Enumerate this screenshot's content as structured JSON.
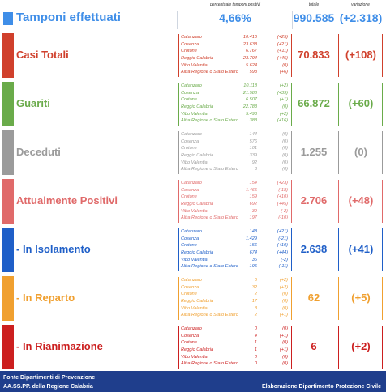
{
  "header": {
    "title": "Tamponi effettuati",
    "pct_label": "percentuale tamponi positivi",
    "pct_value": "4,66%",
    "totale_label": "totale",
    "totale_value": "990.585",
    "variazione_label": "variazione",
    "variazione_value": "(+2.318)",
    "color": "#3f8ee8"
  },
  "sections": [
    {
      "title": "Casi Totali",
      "color": "#d0402c",
      "totale": "70.833",
      "variazione": "(+108)",
      "rows": [
        {
          "name": "Catanzaro",
          "value": "10.416",
          "var": "(+25)"
        },
        {
          "name": "Cosenza",
          "value": "23.638",
          "var": "(+21)"
        },
        {
          "name": "Crotone",
          "value": "6.767",
          "var": "(+11)"
        },
        {
          "name": "Reggio Calabria",
          "value": "23.794",
          "var": "(+45)"
        },
        {
          "name": "Vibo Valentia",
          "value": "5.624",
          "var": "(0)"
        },
        {
          "name": "Altra Regione o Stato Estero",
          "value": "593",
          "var": "(+6)"
        }
      ]
    },
    {
      "title": "Guariti",
      "color": "#6aab4a",
      "totale": "66.872",
      "variazione": "(+60)",
      "rows": [
        {
          "name": "Catanzaro",
          "value": "10.118",
          "var": "(+2)"
        },
        {
          "name": "Cosenza",
          "value": "21.588",
          "var": "(+39)"
        },
        {
          "name": "Crotone",
          "value": "6.507",
          "var": "(+1)"
        },
        {
          "name": "Reggio Calabria",
          "value": "22.783",
          "var": "(0)"
        },
        {
          "name": "Vibo Valentia",
          "value": "5.493",
          "var": "(+2)"
        },
        {
          "name": "Altra Regione o Stato Estero",
          "value": "383",
          "var": "(+16)"
        }
      ]
    },
    {
      "title": "Deceduti",
      "color": "#9b9b9b",
      "totale": "1.255",
      "variazione": "(0)",
      "rows": [
        {
          "name": "Catanzaro",
          "value": "144",
          "var": "(0)"
        },
        {
          "name": "Cosenza",
          "value": "576",
          "var": "(0)"
        },
        {
          "name": "Crotone",
          "value": "101",
          "var": "(0)"
        },
        {
          "name": "Reggio Calabria",
          "value": "339",
          "var": "(0)"
        },
        {
          "name": "Vibo Valentia",
          "value": "92",
          "var": "(0)"
        },
        {
          "name": "Altra Regione o Stato Estero",
          "value": "3",
          "var": "(0)"
        }
      ]
    },
    {
      "title": "Attualmente Positivi",
      "color": "#e06a6a",
      "totale": "2.706",
      "variazione": "(+48)",
      "rows": [
        {
          "name": "Catanzaro",
          "value": "154",
          "var": "(+23)"
        },
        {
          "name": "Cosenza",
          "value": "1.465",
          "var": "(-18)"
        },
        {
          "name": "Crotone",
          "value": "159",
          "var": "(+10)"
        },
        {
          "name": "Reggio Calabria",
          "value": "692",
          "var": "(+45)"
        },
        {
          "name": "Vibo Valentia",
          "value": "39",
          "var": "(-2)"
        },
        {
          "name": "Altra Regione o Stato Estero",
          "value": "197",
          "var": "(-10)"
        }
      ]
    },
    {
      "title": "- In Isolamento",
      "color": "#1f5fc8",
      "totale": "2.638",
      "variazione": "(+41)",
      "rows": [
        {
          "name": "Catanzaro",
          "value": "148",
          "var": "(+21)"
        },
        {
          "name": "Cosenza",
          "value": "1.429",
          "var": "(-21)"
        },
        {
          "name": "Crotone",
          "value": "156",
          "var": "(+10)"
        },
        {
          "name": "Reggio Calabria",
          "value": "674",
          "var": "(+44)"
        },
        {
          "name": "Vibo Valentia",
          "value": "36",
          "var": "(-2)"
        },
        {
          "name": "Altra Regione o Stato Estero",
          "value": "195",
          "var": "(-11)"
        }
      ]
    },
    {
      "title": "- In Reparto",
      "color": "#f0a030",
      "totale": "62",
      "variazione": "(+5)",
      "rows": [
        {
          "name": "Catanzaro",
          "value": "6",
          "var": "(+2)"
        },
        {
          "name": "Cosenza",
          "value": "32",
          "var": "(+2)"
        },
        {
          "name": "Crotone",
          "value": "2",
          "var": "(0)"
        },
        {
          "name": "Reggio Calabria",
          "value": "17",
          "var": "(0)"
        },
        {
          "name": "Vibo Valentia",
          "value": "3",
          "var": "(0)"
        },
        {
          "name": "Altra Regione o Stato Estero",
          "value": "2",
          "var": "(+1)"
        }
      ]
    },
    {
      "title": "- In Rianimazione",
      "color": "#cc1f1f",
      "totale": "6",
      "variazione": "(+2)",
      "rows": [
        {
          "name": "Catanzaro",
          "value": "0",
          "var": "(0)"
        },
        {
          "name": "Cosenza",
          "value": "4",
          "var": "(+1)"
        },
        {
          "name": "Crotone",
          "value": "1",
          "var": "(0)"
        },
        {
          "name": "Reggio Calabria",
          "value": "1",
          "var": "(+1)"
        },
        {
          "name": "Vibo Valentia",
          "value": "0",
          "var": "(0)"
        },
        {
          "name": "Altra Regione o Stato Estero",
          "value": "0",
          "var": "(0)"
        }
      ]
    }
  ],
  "footer": {
    "line1": "Fonte Dipartimenti di Prevenzione",
    "line2": "AA.SS.PP.  della Regione Calabria",
    "right": "Elaborazione Dipartimento Protezione Civile"
  }
}
